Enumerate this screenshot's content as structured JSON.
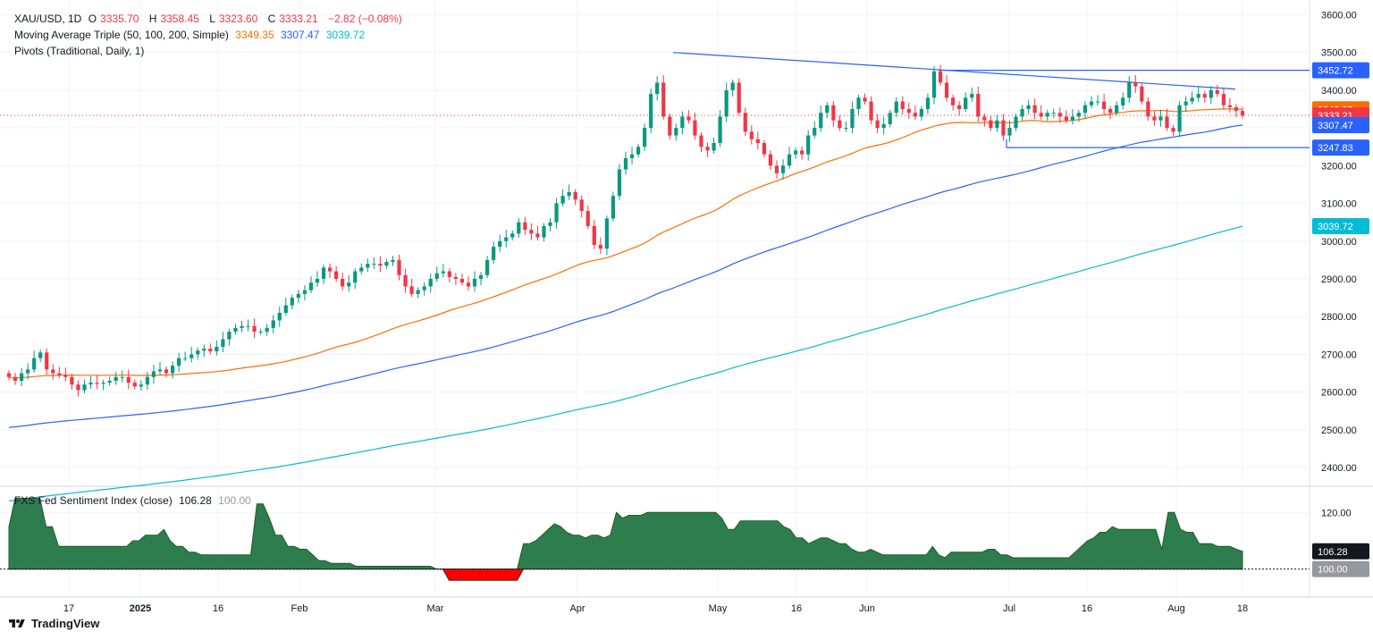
{
  "legend": {
    "symbol": "XAU/USD, 1D",
    "o_label": "O",
    "o_value": "3335.70",
    "h_label": "H",
    "h_value": "3358.45",
    "l_label": "L",
    "l_value": "3323.60",
    "c_label": "C",
    "c_value": "3333.21",
    "change": "−2.82 (−0.08%)",
    "ma_label": "Moving Average Triple (50, 100, 200, Simple)",
    "ma50_value": "3349.35",
    "ma100_value": "3307.47",
    "ma200_value": "3039.72",
    "pivots_label": "Pivots (Traditional, Daily, 1)"
  },
  "sub_legend": {
    "label": "FXS Fed Sentiment Index (close)",
    "value": "106.28",
    "baseline": "100.00"
  },
  "footer": {
    "brand": "TradingView"
  },
  "colors": {
    "up": "#089981",
    "down": "#f23645",
    "ma50": "#ff6d00",
    "ma100": "#2962ff",
    "ma200": "#00bcd4",
    "trendline": "#2962ff",
    "sentiment_fill": "#2e7d4f",
    "sentiment_neg": "#ff0000"
  },
  "chart_data": [
    {
      "type": "candlestick",
      "title": "XAU/USD, 1D",
      "ylim": [
        2360,
        3620
      ],
      "y_ticks": [
        2400,
        2500,
        2600,
        2700,
        2800,
        2900,
        3000,
        3100,
        3200,
        3300,
        3400,
        3500,
        3600
      ],
      "x_tick_labels": [
        "17",
        "2025",
        "16",
        "Feb",
        "Mar",
        "Apr",
        "May",
        "16",
        "Jun",
        "Jul",
        "16",
        "Aug",
        "18"
      ],
      "price_labels": [
        {
          "value": 3452.72,
          "label": "3452.72",
          "kind": "pivot"
        },
        {
          "value": 3349.35,
          "label": "3349.35",
          "kind": "ma50"
        },
        {
          "value": 3333.21,
          "label": "3333.21",
          "kind": "last"
        },
        {
          "value": 3307.47,
          "label": "3307.47",
          "kind": "ma100"
        },
        {
          "value": 3247.83,
          "label": "3247.83",
          "kind": "pivot"
        },
        {
          "value": 3039.72,
          "label": "3039.72",
          "kind": "ma200"
        }
      ],
      "closes": [
        2640,
        2630,
        2650,
        2660,
        2690,
        2705,
        2660,
        2650,
        2645,
        2640,
        2620,
        2605,
        2620,
        2625,
        2622,
        2625,
        2630,
        2640,
        2640,
        2625,
        2615,
        2620,
        2640,
        2655,
        2660,
        2650,
        2670,
        2690,
        2690,
        2700,
        2710,
        2715,
        2708,
        2720,
        2740,
        2760,
        2770,
        2775,
        2775,
        2760,
        2760,
        2770,
        2790,
        2810,
        2830,
        2850,
        2860,
        2870,
        2890,
        2900,
        2930,
        2920,
        2900,
        2880,
        2890,
        2920,
        2930,
        2940,
        2940,
        2935,
        2945,
        2950,
        2910,
        2880,
        2860,
        2870,
        2880,
        2900,
        2915,
        2920,
        2905,
        2900,
        2890,
        2880,
        2900,
        2910,
        2950,
        2985,
        3000,
        3010,
        3020,
        3050,
        3030,
        3020,
        3010,
        3040,
        3050,
        3100,
        3120,
        3130,
        3110,
        3080,
        3040,
        2990,
        2980,
        3060,
        3120,
        3190,
        3220,
        3230,
        3250,
        3300,
        3390,
        3420,
        3330,
        3280,
        3300,
        3330,
        3320,
        3280,
        3250,
        3240,
        3260,
        3330,
        3400,
        3420,
        3340,
        3290,
        3270,
        3260,
        3230,
        3200,
        3180,
        3200,
        3230,
        3240,
        3230,
        3280,
        3300,
        3340,
        3360,
        3320,
        3300,
        3300,
        3350,
        3380,
        3370,
        3320,
        3300,
        3310,
        3340,
        3370,
        3350,
        3340,
        3330,
        3350,
        3380,
        3450,
        3420,
        3380,
        3360,
        3350,
        3380,
        3390,
        3330,
        3320,
        3300,
        3320,
        3280,
        3300,
        3330,
        3350,
        3360,
        3340,
        3330,
        3340,
        3340,
        3330,
        3320,
        3330,
        3340,
        3360,
        3370,
        3370,
        3350,
        3340,
        3360,
        3380,
        3420,
        3410,
        3370,
        3330,
        3320,
        3330,
        3300,
        3290,
        3360,
        3370,
        3380,
        3390,
        3380,
        3400,
        3390,
        3360,
        3355,
        3345,
        3333
      ],
      "ma50": {
        "values_note": "orange 50-day SMA",
        "last": 3349.35
      },
      "ma100": {
        "last": 3307.47
      },
      "ma200": {
        "last": 3039.72
      },
      "pivots": {
        "upper": 3452.72,
        "lower": 3247.83
      }
    },
    {
      "type": "area",
      "title": "FXS Fed Sentiment Index (close)",
      "ylim": [
        92,
        128
      ],
      "y_ticks": [
        120
      ],
      "baseline": 100,
      "last": 106.28,
      "values": [
        115,
        125,
        125,
        125,
        125,
        125,
        115,
        115,
        108,
        108,
        108,
        108,
        108,
        108,
        108,
        108,
        108,
        108,
        108,
        108,
        110,
        110,
        112,
        112,
        112,
        114,
        110,
        108,
        108,
        106,
        106,
        105,
        105,
        105,
        105,
        105,
        105,
        105,
        105,
        105,
        123,
        123,
        118,
        112,
        112,
        108,
        108,
        107,
        107,
        105,
        103,
        103,
        102,
        102,
        102,
        102,
        101,
        101,
        101,
        101,
        101,
        101,
        101,
        101,
        101,
        101,
        101,
        101,
        101,
        100,
        100,
        96,
        96,
        96,
        96,
        96,
        96,
        96,
        96,
        96,
        96,
        96,
        96,
        109,
        109,
        110,
        112,
        114,
        116,
        115,
        113,
        112,
        112,
        111,
        112,
        112,
        111,
        112,
        120,
        118,
        119,
        119,
        119,
        120,
        120,
        120,
        120,
        120,
        120,
        120,
        120,
        120,
        120,
        120,
        120,
        118,
        114,
        114,
        117,
        117,
        117,
        117,
        117,
        117,
        117,
        115,
        114,
        111,
        111,
        109,
        110,
        111,
        111,
        110,
        109,
        109,
        107,
        106,
        106,
        107,
        106,
        105,
        105,
        105,
        105,
        105,
        105,
        105,
        105,
        108,
        105,
        104,
        106,
        106,
        106,
        106,
        106,
        106,
        107,
        107,
        105,
        105,
        104,
        104,
        104,
        104,
        104,
        104,
        104,
        104,
        104,
        104,
        106,
        108,
        110,
        111,
        113,
        113,
        115,
        114,
        114,
        114,
        114,
        114,
        114,
        114,
        107,
        120,
        120,
        114,
        113,
        113,
        109,
        109,
        109,
        108,
        108,
        108,
        107,
        106.28
      ],
      "x_tick_labels": [
        "17",
        "2025",
        "16",
        "Feb",
        "Mar",
        "Apr",
        "May",
        "16",
        "Jun",
        "Jul",
        "16",
        "Aug",
        "18"
      ]
    }
  ]
}
